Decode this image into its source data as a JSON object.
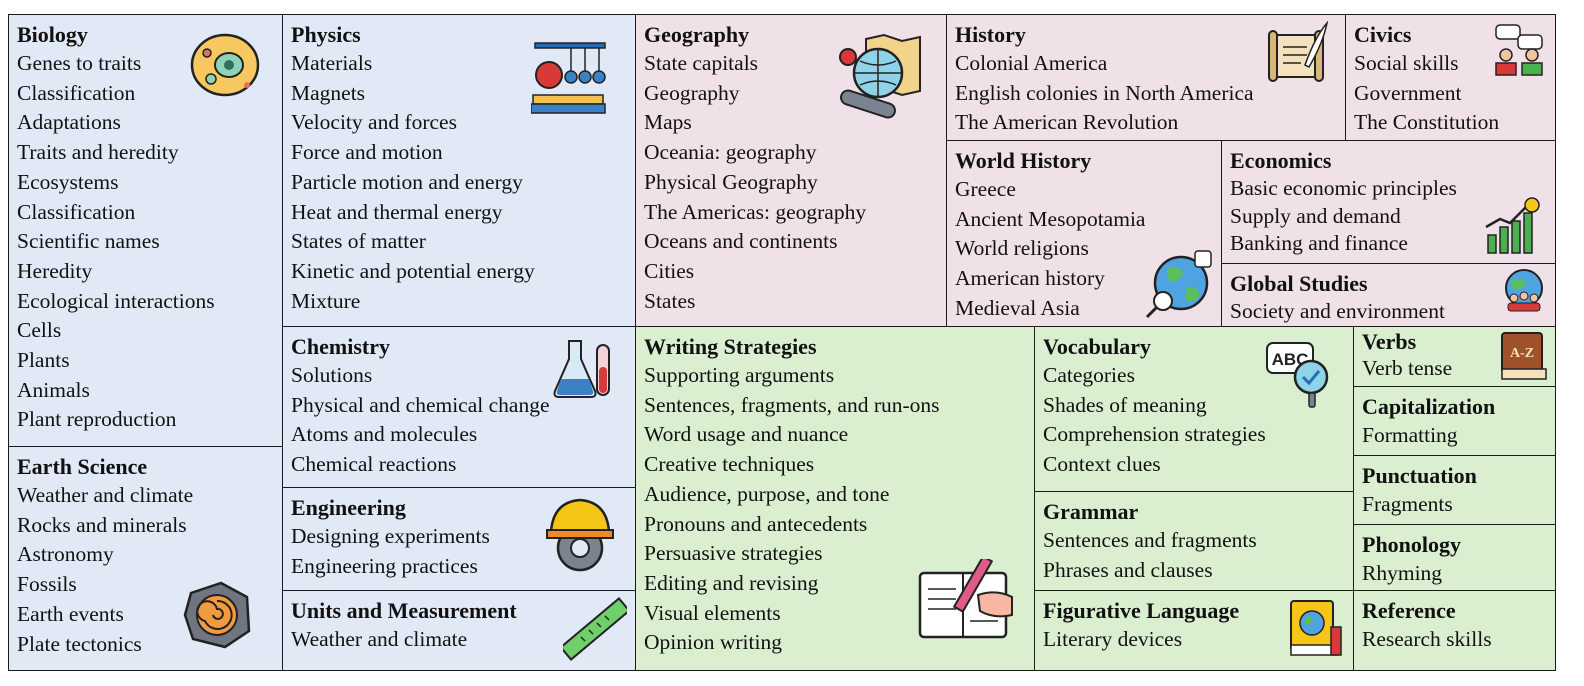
{
  "subjects": {
    "biology": {
      "title": "Biology",
      "items": [
        "Genes to traits",
        "Classification",
        "Adaptations",
        "Traits and heredity",
        "Ecosystems",
        "Classification",
        "Scientific names",
        "Heredity",
        "Ecological interactions",
        "Cells",
        "Plants",
        "Animals",
        "Plant reproduction"
      ],
      "icon": "cell-icon"
    },
    "earth_science": {
      "title": "Earth Science",
      "items": [
        "Weather and climate",
        "Rocks and minerals",
        "Astronomy",
        "Fossils",
        "Earth events",
        "Plate tectonics"
      ],
      "icon": "fossil-icon"
    },
    "physics": {
      "title": "Physics",
      "items": [
        "Materials",
        "Magnets",
        "Velocity and forces",
        "Force and motion",
        "Particle motion and energy",
        "Heat and thermal energy",
        "States of matter",
        "Kinetic and potential energy",
        "Mixture"
      ],
      "icon": "newtons-cradle-icon"
    },
    "chemistry": {
      "title": "Chemistry",
      "items": [
        "Solutions",
        "Physical and chemical change",
        "Atoms and molecules",
        "Chemical reactions"
      ],
      "icon": "flask-icon"
    },
    "engineering": {
      "title": "Engineering",
      "items": [
        "Designing experiments",
        "Engineering practices"
      ],
      "icon": "helmet-gear-icon"
    },
    "units": {
      "title": "Units and Measurement",
      "items": [
        "Weather and climate"
      ],
      "icon": "ruler-icon"
    },
    "geography": {
      "title": "Geography",
      "items": [
        "State capitals",
        "Geography",
        "Maps",
        "Oceania: geography",
        "Physical Geography",
        "The Americas: geography",
        "Oceans and continents",
        "Cities",
        "States"
      ],
      "icon": "globe-telescope-icon"
    },
    "history": {
      "title": "History",
      "items": [
        "Colonial America",
        "English colonies in North America",
        "The American Revolution"
      ],
      "icon": "scroll-quill-icon"
    },
    "civics": {
      "title": "Civics",
      "items": [
        "Social skills",
        "Government",
        "The Constitution"
      ],
      "icon": "meeting-icon"
    },
    "world_history": {
      "title": "World History",
      "items": [
        "Greece",
        "Ancient Mesopotamia",
        "World religions",
        "American history",
        "Medieval Asia"
      ],
      "icon": "world-magnifier-icon"
    },
    "economics": {
      "title": "Economics",
      "items": [
        "Basic economic principles",
        "Supply and demand",
        "Banking and finance"
      ],
      "icon": "growth-chart-icon"
    },
    "global_studies": {
      "title": "Global Studies",
      "items": [
        "Society and environment"
      ],
      "icon": "people-globe-icon"
    },
    "writing": {
      "title": "Writing Strategies",
      "items": [
        "Supporting arguments",
        "Sentences, fragments, and run-ons",
        "Word usage and nuance",
        "Creative techniques",
        "Audience, purpose, and tone",
        "Pronouns and antecedents",
        "Persuasive strategies",
        "Editing and revising",
        "Visual elements",
        "Opinion writing"
      ],
      "icon": "writing-hand-icon"
    },
    "vocabulary": {
      "title": "Vocabulary",
      "items": [
        "Categories",
        "Shades of meaning",
        "Comprehension strategies",
        "Context clues"
      ],
      "icon": "abc-magnifier-icon",
      "icon_text": "ABC"
    },
    "grammar": {
      "title": "Grammar",
      "items": [
        "Sentences and fragments",
        "Phrases and clauses"
      ]
    },
    "figurative": {
      "title": "Figurative Language",
      "items": [
        "Literary devices"
      ],
      "icon": "book-globe-icon"
    },
    "verbs": {
      "title": "Verbs",
      "items": [
        "Verb tense"
      ],
      "icon": "dictionary-icon",
      "icon_text": "A-Z"
    },
    "capitalization": {
      "title": "Capitalization",
      "items": [
        "Formatting"
      ]
    },
    "punctuation": {
      "title": "Punctuation",
      "items": [
        "Fragments"
      ]
    },
    "phonology": {
      "title": "Phonology",
      "items": [
        "Rhyming"
      ]
    },
    "reference": {
      "title": "Reference",
      "items": [
        "Research skills"
      ]
    }
  },
  "colors": {
    "natural_science": "#e2e9f6",
    "social_science": "#f0e0e8",
    "language_science": "#d9efd0",
    "border": "#1a1a1a"
  }
}
